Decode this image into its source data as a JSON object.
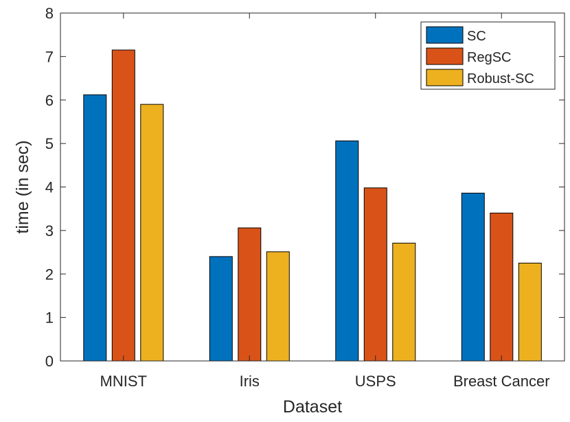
{
  "chart_data": {
    "type": "bar",
    "title": "",
    "xlabel": "Dataset",
    "ylabel": "time (in sec)",
    "categories": [
      "MNIST",
      "Iris",
      "USPS",
      "Breast Cancer"
    ],
    "ylim": [
      0,
      8
    ],
    "yticks": [
      "0",
      "1",
      "2",
      "3",
      "4",
      "5",
      "6",
      "7",
      "8"
    ],
    "grid": false,
    "legend_position": "top-right",
    "series": [
      {
        "name": "SC",
        "color": "#0072BD",
        "values": [
          6.12,
          2.4,
          5.06,
          3.86
        ]
      },
      {
        "name": "RegSC",
        "color": "#D95319",
        "values": [
          7.15,
          3.06,
          3.98,
          3.4
        ]
      },
      {
        "name": "Robust-SC",
        "color": "#EDB120",
        "values": [
          5.9,
          2.51,
          2.71,
          2.25
        ]
      }
    ]
  }
}
